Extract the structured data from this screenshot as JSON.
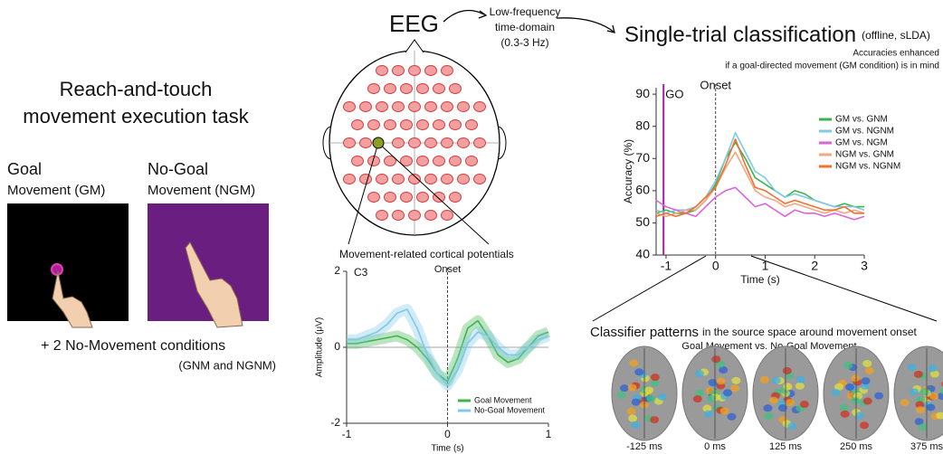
{
  "task": {
    "title_lines": [
      "Reach-and-touch",
      "movement execution task"
    ],
    "goal": {
      "label": "Goal",
      "sublabel": "Movement (GM)"
    },
    "nogoal": {
      "label": "No-Goal",
      "sublabel": "Movement (NGM)"
    },
    "note": "+ 2 No-Movement conditions",
    "note_sub": "(GNM and NGNM)"
  },
  "eeg": {
    "title": "EEG",
    "filter_lines": [
      "Low-frequency",
      "time-domain",
      "(0.3-3 Hz)"
    ],
    "potentials_label": "Movement-related cortical potentials"
  },
  "classification": {
    "title": "Single-trial classification",
    "subtitle": "(offline, sLDA)",
    "note_lines": [
      "Accuracies enhanced",
      "if a goal-directed movement (GM condition) is in mind"
    ]
  },
  "patterns": {
    "title": "Classifier patterns",
    "title_rest": "in the source space around movement onset",
    "subtitle": "Goal Movement vs. No-Goal Movement",
    "times": [
      "-125 ms",
      "0 ms",
      "125 ms",
      "250 ms",
      "375 ms"
    ]
  },
  "chart_data": [
    {
      "type": "line",
      "ylabel": "Accuracy (%)",
      "xlabel": "Time (s)",
      "x": [
        -1.2,
        -1.0,
        -0.8,
        -0.6,
        -0.4,
        -0.2,
        0.0,
        0.2,
        0.4,
        0.6,
        0.8,
        1.0,
        1.2,
        1.4,
        1.6,
        1.8,
        2.0,
        2.2,
        2.4,
        2.6,
        2.8,
        3.0
      ],
      "xlim": [
        -1.2,
        3
      ],
      "xticks": [
        -1,
        0,
        1,
        2,
        3
      ],
      "ylim": [
        40,
        92
      ],
      "yticks": [
        40,
        50,
        60,
        70,
        80,
        90
      ],
      "annotations": [
        {
          "text": "GO",
          "x": -1.05,
          "color": "#a020a0",
          "style": "solid"
        },
        {
          "text": "Onset",
          "x": 0,
          "color": "#444444",
          "style": "dashed"
        }
      ],
      "legend": "upper right",
      "series": [
        {
          "name": "GM vs. GNM",
          "color": "#3cb44b",
          "values": [
            53,
            54,
            53,
            53,
            54,
            57,
            62,
            70,
            75,
            70,
            64,
            62,
            60,
            58,
            60,
            59,
            57,
            56,
            55,
            56,
            55,
            55
          ]
        },
        {
          "name": "GM vs. NGNM",
          "color": "#7ec8e8",
          "values": [
            54,
            53,
            54,
            54,
            55,
            58,
            63,
            70,
            78,
            72,
            66,
            64,
            60,
            58,
            59,
            58,
            57,
            56,
            55,
            55,
            55,
            54
          ]
        },
        {
          "name": "GM vs. NGM",
          "color": "#d966d9",
          "values": [
            57,
            55,
            54,
            53,
            52,
            55,
            58,
            60,
            61,
            58,
            55,
            56,
            54,
            52,
            54,
            53,
            53,
            52,
            53,
            52,
            51,
            52
          ]
        },
        {
          "name": "NGM vs. GNM",
          "color": "#f4a582",
          "values": [
            53,
            52,
            53,
            54,
            54,
            57,
            61,
            67,
            72,
            66,
            60,
            58,
            57,
            55,
            56,
            55,
            54,
            53,
            54,
            53,
            54,
            53
          ]
        },
        {
          "name": "NGM vs. NGNM",
          "color": "#f07030",
          "values": [
            52,
            53,
            52,
            53,
            55,
            58,
            61,
            68,
            76,
            68,
            61,
            60,
            58,
            56,
            57,
            56,
            55,
            54,
            54,
            55,
            53,
            53
          ]
        }
      ]
    },
    {
      "type": "line",
      "title": "C3",
      "ylabel": "Amplitude (μV)",
      "xlabel": "Time (s)",
      "x": [
        -1.0,
        -0.9,
        -0.8,
        -0.7,
        -0.6,
        -0.5,
        -0.4,
        -0.3,
        -0.2,
        -0.1,
        0.0,
        0.1,
        0.2,
        0.3,
        0.4,
        0.5,
        0.6,
        0.7,
        0.8,
        0.9,
        1.0
      ],
      "xlim": [
        -1,
        1
      ],
      "xticks": [
        -1,
        0,
        1
      ],
      "ylim": [
        -2,
        2
      ],
      "yticks": [
        -2,
        0,
        2
      ],
      "annotations": [
        {
          "text": "Onset",
          "x": 0,
          "color": "#444444",
          "style": "dashed"
        }
      ],
      "legend": "lower right",
      "series": [
        {
          "name": "Goal Movement",
          "color": "#3cb44b",
          "values": [
            0.1,
            0.1,
            0.15,
            0.2,
            0.25,
            0.3,
            0.2,
            0.0,
            -0.3,
            -0.7,
            -0.9,
            -0.3,
            0.5,
            0.7,
            0.3,
            -0.2,
            -0.4,
            -0.3,
            0.0,
            0.3,
            0.4
          ]
        },
        {
          "name": "No-Goal Movement",
          "color": "#7ec8e8",
          "values": [
            0.2,
            0.2,
            0.3,
            0.4,
            0.6,
            0.9,
            1.0,
            0.5,
            -0.2,
            -0.7,
            -1.0,
            -0.6,
            0.1,
            0.4,
            0.3,
            0.0,
            -0.2,
            -0.2,
            0.0,
            0.2,
            0.3
          ]
        }
      ]
    }
  ]
}
